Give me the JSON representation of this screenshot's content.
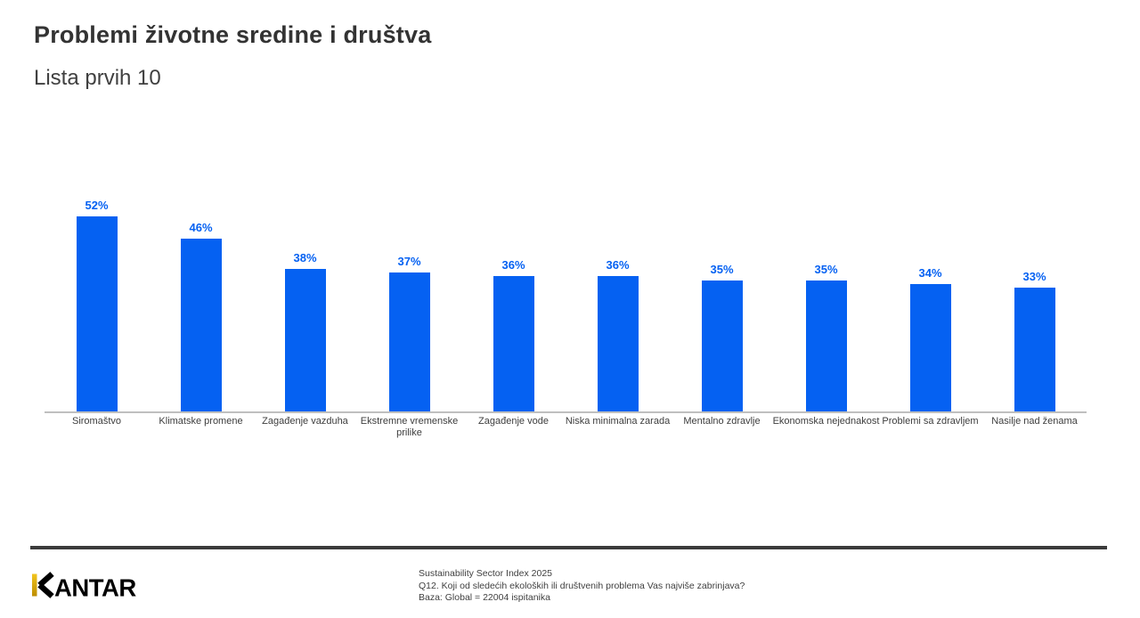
{
  "header": {
    "title": "Problemi životne sredine i društva",
    "subtitle": "Lista prvih 10"
  },
  "chart_data": {
    "type": "bar",
    "title": "Problemi životne sredine i društva",
    "subtitle": "Lista prvih 10",
    "categories": [
      "Siromaštvo",
      "Klimatske promene",
      "Zagađenje vazduha",
      "Ekstremne vremenske prilike",
      "Zagađenje vode",
      "Niska minimalna zarada",
      "Mentalno zdravlje",
      "Ekonomska nejednakost",
      "Problemi sa zdravljem",
      "Nasilje nad ženama"
    ],
    "tick_labels": [
      "Siromaštvo",
      "Klimatske promene",
      "Zagađenje vazduha",
      "Ekstremne vremenske\nprilike",
      "Zagađenje vode",
      "Niska minimalna zarada",
      "Mentalno zdravlje",
      "Ekonomska nejednakost",
      "Problemi sa zdravljem",
      "Nasilje nad ženama"
    ],
    "values": [
      52,
      46,
      38,
      37,
      36,
      36,
      35,
      35,
      34,
      33
    ],
    "value_labels": [
      "52%",
      "46%",
      "38%",
      "37%",
      "36%",
      "36%",
      "35%",
      "35%",
      "34%",
      "33%"
    ],
    "unit": "%",
    "xlabel": "",
    "ylabel": "",
    "ylim": [
      0,
      55
    ],
    "grid": false,
    "legend_position": "none",
    "bar_color": "#0561F2",
    "value_label_color": "#0561F2",
    "axis_line_color": "#BFBFBF"
  },
  "footer": {
    "logo_full": "KANTAR",
    "logo_rest": "ANTAR",
    "logo_gold_top": "#F2C41E",
    "logo_gold_bottom": "#BD8D00",
    "source_lines": [
      "Sustainability Sector Index 2025",
      "Q12. Koji od sledećih ekoloških ili društvenih problema Vas najviše zabrinjava?",
      "Baza: Global = 22004 ispitanika"
    ]
  }
}
